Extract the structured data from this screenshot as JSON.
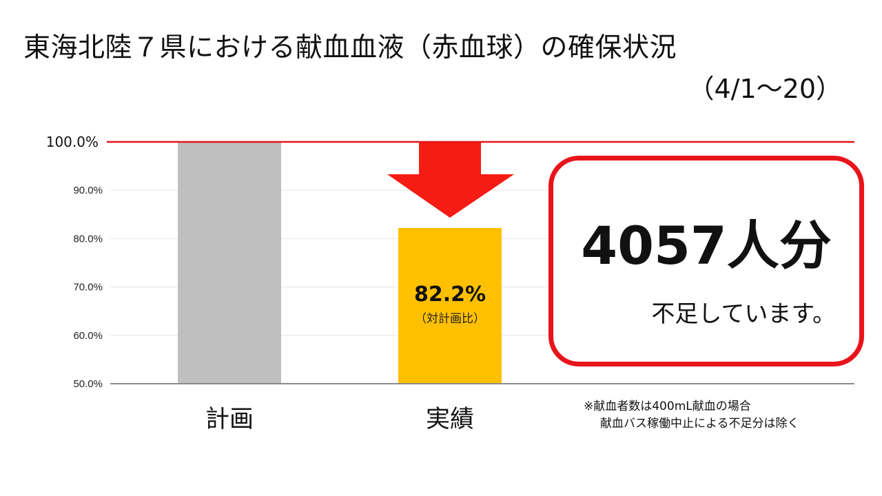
{
  "title": "東海北陸７県における献血血液（赤血球）の確保状況",
  "subtitle": "（4/1～20）",
  "callout": {
    "count": "4057人分",
    "text": "不足しています。"
  },
  "footnotes": [
    "※献血者数は400mL献血の場合",
    "献血バス稼働中止による不足分は除く"
  ],
  "colors": {
    "plan_bar": "#bfbfbf",
    "actual_bar": "#ffc000",
    "target_line": "#e8141b",
    "arrow": "#f41c14",
    "callout_border": "#e8141b"
  },
  "chart_data": {
    "type": "bar",
    "categories": [
      "計画",
      "実績"
    ],
    "values": [
      100.0,
      82.2
    ],
    "ylim": [
      50,
      100
    ],
    "yticks": [
      "50.0%",
      "60.0%",
      "70.0%",
      "80.0%",
      "90.0%",
      "100.0%"
    ],
    "target_line": 100.0,
    "data_labels": [
      {
        "category": "実績",
        "value": "82.2%",
        "note": "（対計画比）"
      }
    ],
    "grid": true,
    "annotation": "down-arrow above 実績 bar"
  }
}
